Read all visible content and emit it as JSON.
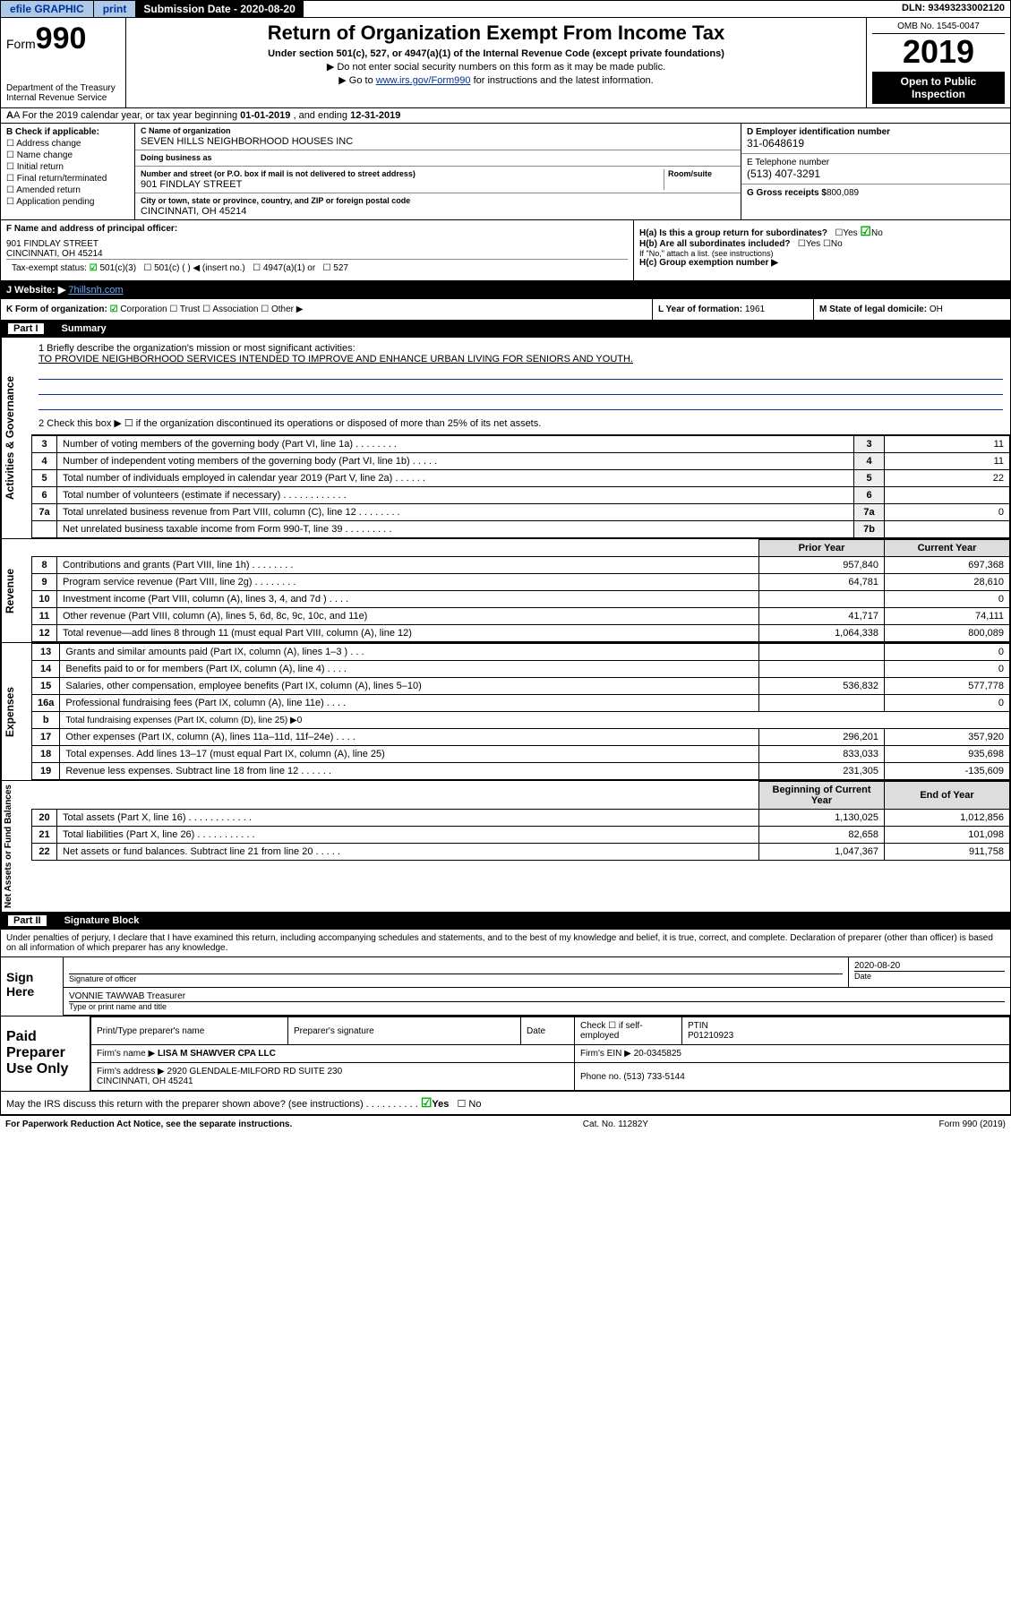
{
  "topbar": {
    "efile": "efile GRAPHIC",
    "print": "print",
    "sublabel": "Submission Date - 2020-08-20",
    "dln": "DLN: 93493233002120"
  },
  "header": {
    "form_prefix": "Form",
    "form_num": "990",
    "dept": "Department of the Treasury\nInternal Revenue Service",
    "title": "Return of Organization Exempt From Income Tax",
    "sub1": "Under section 501(c), 527, or 4947(a)(1) of the Internal Revenue Code (except private foundations)",
    "sub2": "▶ Do not enter social security numbers on this form as it may be made public.",
    "sub3_pre": "▶ Go to ",
    "sub3_link": "www.irs.gov/Form990",
    "sub3_post": " for instructions and the latest information.",
    "omb": "OMB No. 1545-0047",
    "taxyear": "2019",
    "openpub": "Open to Public Inspection"
  },
  "rowA": {
    "text_pre": "A For the 2019 calendar year, or tax year beginning ",
    "begin": "01-01-2019",
    "mid": " , and ending ",
    "end": "12-31-2019"
  },
  "blockB": {
    "hdr": "B Check if applicable:",
    "opts": [
      "Address change",
      "Name change",
      "Initial return",
      "Final return/terminated",
      "Amended return",
      "Application pending"
    ]
  },
  "blockC": {
    "name_lbl": "C Name of organization",
    "name": "SEVEN HILLS NEIGHBORHOOD HOUSES INC",
    "dba_lbl": "Doing business as",
    "dba": "",
    "addr_lbl": "Number and street (or P.O. box if mail is not delivered to street address)",
    "room_lbl": "Room/suite",
    "addr": "901 FINDLAY STREET",
    "city_lbl": "City or town, state or province, country, and ZIP or foreign postal code",
    "city": "CINCINNATI, OH  45214"
  },
  "blockD": {
    "ein_lbl": "D Employer identification number",
    "ein": "31-0648619",
    "tel_lbl": "E Telephone number",
    "tel": "(513) 407-3291",
    "gross_lbl": "G Gross receipts $",
    "gross": "800,089"
  },
  "rowFH": {
    "f_lbl": "F Name and address of principal officer:",
    "f_val": "901 FINDLAY STREET\nCINCINNATI, OH  45214",
    "ha": "H(a)  Is this a group return for subordinates?",
    "ha_val": "No",
    "hb": "H(b)  Are all subordinates included?",
    "hb_note": "If \"No,\" attach a list. (see instructions)",
    "hc": "H(c)  Group exemption number ▶",
    "taxex_lbl": "Tax-exempt status:",
    "taxex_opts": [
      "501(c)(3)",
      "501(c) (  ) ◀ (insert no.)",
      "4947(a)(1) or",
      "527"
    ]
  },
  "rowJ": {
    "lbl": "J Website: ▶",
    "url": "7hillsnh.com"
  },
  "rowKLM": {
    "k": "K Form of organization:",
    "k_opts": [
      "Corporation",
      "Trust",
      "Association",
      "Other ▶"
    ],
    "l_lbl": "L Year of formation:",
    "l_val": "1961",
    "m_lbl": "M State of legal domicile:",
    "m_val": "OH"
  },
  "part1": {
    "hdr_part": "Part I",
    "hdr_title": "Summary",
    "q1_lbl": "1  Briefly describe the organization's mission or most significant activities:",
    "q1_val": "TO PROVIDE NEIGHBORHOOD SERVICES INTENDED TO IMPROVE AND ENHANCE URBAN LIVING FOR SENIORS AND YOUTH.",
    "q2": "2  Check this box ▶ ☐  if the organization discontinued its operations or disposed of more than 25% of its net assets.",
    "rows_gov": [
      {
        "n": "3",
        "lbl": "Number of voting members of the governing body (Part VI, line 1a)  .    .    .    .    .    .    .    .",
        "box": "3",
        "val": "11"
      },
      {
        "n": "4",
        "lbl": "Number of independent voting members of the governing body (Part VI, line 1b)  .    .    .    .    .",
        "box": "4",
        "val": "11"
      },
      {
        "n": "5",
        "lbl": "Total number of individuals employed in calendar year 2019 (Part V, line 2a)  .    .    .    .    .    .",
        "box": "5",
        "val": "22"
      },
      {
        "n": "6",
        "lbl": "Total number of volunteers (estimate if necessary)  .    .    .    .    .    .    .    .    .    .    .    .",
        "box": "6",
        "val": ""
      },
      {
        "n": "7a",
        "lbl": "Total unrelated business revenue from Part VIII, column (C), line 12  .    .    .    .    .    .    .    .",
        "box": "7a",
        "val": "0"
      },
      {
        "n": "",
        "lbl": "Net unrelated business taxable income from Form 990-T, line 39  .    .    .    .    .    .    .    .    .",
        "box": "7b",
        "val": ""
      }
    ],
    "col_prior": "Prior Year",
    "col_curr": "Current Year",
    "rows_rev": [
      {
        "n": "8",
        "lbl": "Contributions and grants (Part VIII, line 1h)  .    .    .    .    .    .    .    .",
        "p": "957,840",
        "c": "697,368"
      },
      {
        "n": "9",
        "lbl": "Program service revenue (Part VIII, line 2g)  .    .    .    .    .    .    .    .",
        "p": "64,781",
        "c": "28,610"
      },
      {
        "n": "10",
        "lbl": "Investment income (Part VIII, column (A), lines 3, 4, and 7d )  .    .    .    .",
        "p": "",
        "c": "0"
      },
      {
        "n": "11",
        "lbl": "Other revenue (Part VIII, column (A), lines 5, 6d, 8c, 9c, 10c, and 11e)",
        "p": "41,717",
        "c": "74,111"
      },
      {
        "n": "12",
        "lbl": "Total revenue—add lines 8 through 11 (must equal Part VIII, column (A), line 12)",
        "p": "1,064,338",
        "c": "800,089"
      }
    ],
    "rows_exp": [
      {
        "n": "13",
        "lbl": "Grants and similar amounts paid (Part IX, column (A), lines 1–3 )  .    .    .",
        "p": "",
        "c": "0"
      },
      {
        "n": "14",
        "lbl": "Benefits paid to or for members (Part IX, column (A), line 4)  .    .    .    .",
        "p": "",
        "c": "0"
      },
      {
        "n": "15",
        "lbl": "Salaries, other compensation, employee benefits (Part IX, column (A), lines 5–10)",
        "p": "536,832",
        "c": "577,778"
      },
      {
        "n": "16a",
        "lbl": "Professional fundraising fees (Part IX, column (A), line 11e)  .    .    .    .",
        "p": "",
        "c": "0"
      },
      {
        "n": "b",
        "lbl": "Total fundraising expenses (Part IX, column (D), line 25) ▶0",
        "p": "─",
        "c": "─"
      },
      {
        "n": "17",
        "lbl": "Other expenses (Part IX, column (A), lines 11a–11d, 11f–24e)  .    .    .    .",
        "p": "296,201",
        "c": "357,920"
      },
      {
        "n": "18",
        "lbl": "Total expenses. Add lines 13–17 (must equal Part IX, column (A), line 25)",
        "p": "833,033",
        "c": "935,698"
      },
      {
        "n": "19",
        "lbl": "Revenue less expenses. Subtract line 18 from line 12  .    .    .    .    .    .",
        "p": "231,305",
        "c": "-135,609"
      }
    ],
    "col_beg": "Beginning of Current Year",
    "col_end": "End of Year",
    "rows_net": [
      {
        "n": "20",
        "lbl": "Total assets (Part X, line 16)  .    .    .    .    .    .    .    .    .    .    .    .",
        "p": "1,130,025",
        "c": "1,012,856"
      },
      {
        "n": "21",
        "lbl": "Total liabilities (Part X, line 26)  .    .    .    .    .    .    .    .    .    .    .",
        "p": "82,658",
        "c": "101,098"
      },
      {
        "n": "22",
        "lbl": "Net assets or fund balances. Subtract line 21 from line 20  .    .    .    .    .",
        "p": "1,047,367",
        "c": "911,758"
      }
    ],
    "side_gov": "Activities & Governance",
    "side_rev": "Revenue",
    "side_exp": "Expenses",
    "side_net": "Net Assets or Fund Balances"
  },
  "part2": {
    "hdr_part": "Part II",
    "hdr_title": "Signature Block",
    "penalty": "Under penalties of perjury, I declare that I have examined this return, including accompanying schedules and statements, and to the best of my knowledge and belief, it is true, correct, and complete. Declaration of preparer (other than officer) is based on all information of which preparer has any knowledge.",
    "sign_lbl": "Sign Here",
    "sig_of_officer": "Signature of officer",
    "sig_date": "2020-08-20",
    "date_lbl": "Date",
    "officer_name": "VONNIE TAWWAB  Treasurer",
    "officer_sub": "Type or print name and title",
    "paid_lbl": "Paid Preparer Use Only",
    "prep_name_lbl": "Print/Type preparer's name",
    "prep_sig_lbl": "Preparer's signature",
    "prep_date_lbl": "Date",
    "check_self": "Check ☐ if self-employed",
    "ptin_lbl": "PTIN",
    "ptin": "P01210923",
    "firm_name_lbl": "Firm's name    ▶",
    "firm_name": "LISA M SHAWVER CPA LLC",
    "firm_ein_lbl": "Firm's EIN ▶",
    "firm_ein": "20-0345825",
    "firm_addr_lbl": "Firm's address ▶",
    "firm_addr": "2920 GLENDALE-MILFORD RD SUITE 230\nCINCINNATI, OH  45241",
    "firm_phone_lbl": "Phone no.",
    "firm_phone": "(513) 733-5144",
    "discuss": "May the IRS discuss this return with the preparer shown above? (see instructions)  .    .    .    .    .    .    .    .    .    .",
    "discuss_val": "Yes"
  },
  "footer": {
    "left": "For Paperwork Reduction Act Notice, see the separate instructions.",
    "mid": "Cat. No. 11282Y",
    "right": "Form 990 (2019)"
  }
}
